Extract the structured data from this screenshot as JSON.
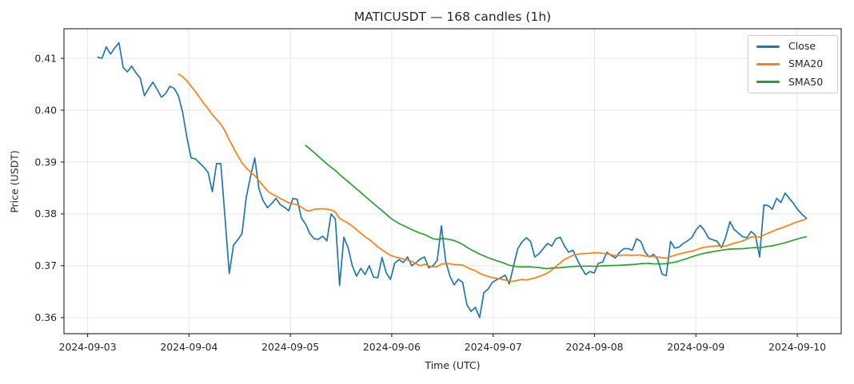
{
  "chart_data": {
    "type": "line",
    "title": "MATICUSDT — 168 candles (1h)",
    "xlabel": "Time (UTC)",
    "ylabel": "Price (USDT)",
    "num_candles": 168,
    "interval": "1h",
    "grid": true,
    "legend_position": "upper right",
    "background_color": "#ffffff",
    "grid_color": "#e6e6e6",
    "spine_color": "#333333",
    "text_color": "#262626",
    "x_tick_labels": [
      "2024-09-03",
      "2024-09-04",
      "2024-09-05",
      "2024-09-06",
      "2024-09-07",
      "2024-09-08",
      "2024-09-09",
      "2024-09-10"
    ],
    "x_tick_hours": [
      0,
      24,
      48,
      72,
      96,
      120,
      144,
      168
    ],
    "x_range_hours": [
      -5.6,
      178.4
    ],
    "y_tick_labels": [
      "0.36",
      "0.37",
      "0.38",
      "0.39",
      "0.40",
      "0.41"
    ],
    "y_ticks": [
      0.36,
      0.37,
      0.38,
      0.39,
      0.4,
      0.41
    ],
    "y_range": [
      0.3569,
      0.4157
    ],
    "x_start_hour": 2.4,
    "x_step_hours": 1.0044,
    "series": [
      {
        "name": "Close",
        "color": "#1f77b4",
        "values": [
          0.4102,
          0.41,
          0.4122,
          0.4108,
          0.412,
          0.413,
          0.4082,
          0.4074,
          0.4085,
          0.4072,
          0.4062,
          0.4028,
          0.4042,
          0.4054,
          0.404,
          0.4025,
          0.4032,
          0.4046,
          0.4042,
          0.4028,
          0.3996,
          0.3948,
          0.3908,
          0.3906,
          0.3898,
          0.389,
          0.388,
          0.3843,
          0.3897,
          0.3897,
          0.3792,
          0.3685,
          0.374,
          0.375,
          0.3762,
          0.3832,
          0.3872,
          0.3908,
          0.3848,
          0.3825,
          0.3812,
          0.382,
          0.383,
          0.3818,
          0.3813,
          0.3806,
          0.383,
          0.3828,
          0.3792,
          0.378,
          0.3762,
          0.3752,
          0.3751,
          0.3757,
          0.3748,
          0.38,
          0.379,
          0.3662,
          0.3755,
          0.3735,
          0.37,
          0.368,
          0.3695,
          0.3683,
          0.37,
          0.3678,
          0.3677,
          0.3716,
          0.3686,
          0.3674,
          0.3705,
          0.3712,
          0.3706,
          0.3717,
          0.37,
          0.3706,
          0.3713,
          0.3717,
          0.3696,
          0.37,
          0.371,
          0.3777,
          0.3709,
          0.368,
          0.3663,
          0.3674,
          0.3668,
          0.3625,
          0.3612,
          0.362,
          0.36,
          0.3648,
          0.3655,
          0.3668,
          0.3673,
          0.3677,
          0.3682,
          0.3665,
          0.37,
          0.3733,
          0.3746,
          0.3754,
          0.3747,
          0.3717,
          0.3723,
          0.3733,
          0.3743,
          0.3738,
          0.3752,
          0.3755,
          0.3738,
          0.3726,
          0.373,
          0.3712,
          0.3696,
          0.3683,
          0.3689,
          0.3686,
          0.3705,
          0.3707,
          0.3726,
          0.372,
          0.3715,
          0.3726,
          0.3733,
          0.3733,
          0.373,
          0.3752,
          0.3747,
          0.3726,
          0.3717,
          0.3722,
          0.3712,
          0.3684,
          0.3681,
          0.3747,
          0.3734,
          0.3736,
          0.3743,
          0.3748,
          0.3754,
          0.3769,
          0.3778,
          0.3768,
          0.3753,
          0.375,
          0.3747,
          0.3735,
          0.3755,
          0.3785,
          0.377,
          0.3763,
          0.3756,
          0.3754,
          0.3766,
          0.3759,
          0.3717,
          0.3817,
          0.3816,
          0.3809,
          0.383,
          0.3822,
          0.384,
          0.383,
          0.382,
          0.3808,
          0.3799,
          0.3792
        ]
      },
      {
        "name": "SMA20",
        "color": "#ff7f0e",
        "derived": {
          "sma_of": 0,
          "window": 20
        }
      },
      {
        "name": "SMA50",
        "color": "#2ca02c",
        "derived": {
          "sma_of": 0,
          "window": 50
        }
      }
    ]
  }
}
